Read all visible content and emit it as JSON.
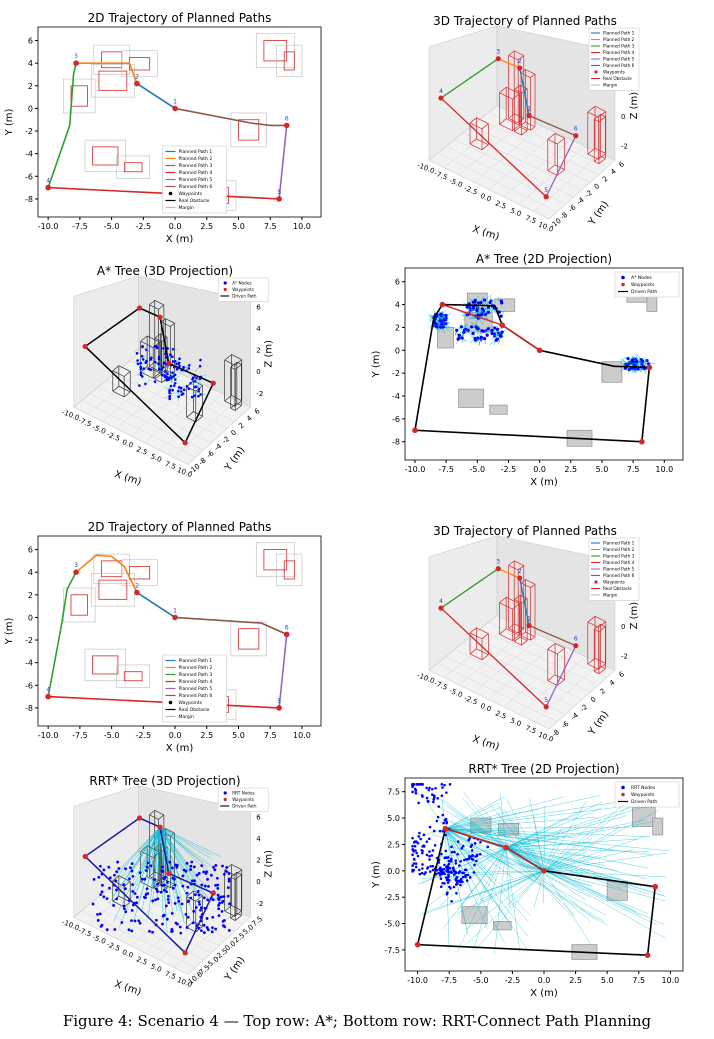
{
  "caption": "Figure 4: Scenario 4 — Top row: A*; Bottom row: RRT-Connect Path Planning",
  "colors": {
    "path1": "#1f77b4",
    "path2": "#ff7f0e",
    "path3": "#2ca02c",
    "path4": "#d62728",
    "path5": "#9467bd",
    "path6": "#8c564b",
    "waypoint": "#d62728",
    "obstacle": "#d62728",
    "margin": "#bbbbbb",
    "tree_node": "#0000ff",
    "tree_edge": "#00bcd4",
    "driven": "#000000"
  },
  "chart_data": [
    {
      "type": "line",
      "title": "2D Trajectory of Planned Paths",
      "xlabel": "X (m)",
      "ylabel": "Y (m)",
      "xlim": [
        -10.8,
        11.5
      ],
      "ylim": [
        -9.6,
        7.2
      ],
      "xticks": [
        "-10.0",
        "-7.5",
        "-5.0",
        "-2.5",
        "0.0",
        "2.5",
        "5.0",
        "7.5",
        "10.0"
      ],
      "yticks": [
        "-8",
        "-6",
        "-4",
        "-2",
        "0",
        "2",
        "4",
        "6"
      ],
      "waypoints": [
        {
          "label": "1",
          "x": 0,
          "y": 0
        },
        {
          "label": "2",
          "x": -3,
          "y": 2.2
        },
        {
          "label": "3",
          "x": -7.8,
          "y": 4
        },
        {
          "label": "4",
          "x": -10,
          "y": -7
        },
        {
          "label": "5",
          "x": 8.2,
          "y": -8
        },
        {
          "label": "6",
          "x": 8.8,
          "y": -1.5
        }
      ],
      "series": [
        {
          "name": "Planned Path 1",
          "color": "#1f77b4",
          "points": [
            [
              0,
              0
            ],
            [
              -3,
              2.2
            ]
          ]
        },
        {
          "name": "Planned Path 2",
          "color": "#ff7f0e",
          "points": [
            [
              -3,
              2.2
            ],
            [
              -3.2,
              2.8
            ],
            [
              -3.6,
              4
            ],
            [
              -7.8,
              4
            ]
          ]
        },
        {
          "name": "Planned Path 3",
          "color": "#2ca02c",
          "points": [
            [
              -7.8,
              4
            ],
            [
              -8,
              3
            ],
            [
              -8.3,
              -1.5
            ],
            [
              -10,
              -7
            ]
          ]
        },
        {
          "name": "Planned Path 4",
          "color": "#d62728",
          "points": [
            [
              -10,
              -7
            ],
            [
              8.2,
              -8
            ]
          ]
        },
        {
          "name": "Planned Path 5",
          "color": "#9467bd",
          "points": [
            [
              8.2,
              -8
            ],
            [
              8.8,
              -1.5
            ]
          ]
        },
        {
          "name": "Planned Path 6",
          "color": "#8c564b",
          "points": [
            [
              8.8,
              -1.5
            ],
            [
              7.5,
              -1.5
            ],
            [
              6,
              -1.3
            ],
            [
              0,
              0
            ]
          ]
        }
      ],
      "obstacles": [
        [
          -5.8,
          3.6,
          1.6,
          1.4
        ],
        [
          -6,
          1.6,
          2.2,
          1.7
        ],
        [
          -8.2,
          0.2,
          1.3,
          1.8
        ],
        [
          -3.6,
          3.4,
          1.6,
          1.1
        ],
        [
          7,
          4.2,
          1.8,
          1.8
        ],
        [
          8.6,
          3.4,
          0.8,
          1.6
        ],
        [
          -6.5,
          -5,
          2,
          1.6
        ],
        [
          -4,
          -5.6,
          1.4,
          0.8
        ],
        [
          5,
          -2.8,
          1.6,
          1.8
        ],
        [
          2.2,
          -8.4,
          2,
          1.4
        ]
      ],
      "legend": [
        "Planned Path 1",
        "Planned Path 2",
        "Planned Path 3",
        "Planned Path 4",
        "Planned Path 5",
        "Planned Path 6",
        "Waypoints",
        "Real Obstacle",
        "Margin"
      ]
    },
    {
      "type": "line",
      "title": "3D Trajectory of Planned Paths",
      "xlabel": "X (m)",
      "ylabel": "Y (m)",
      "zlabel": "Z (m)",
      "xticks": [
        "-10.0",
        "-7.5",
        "-5.0",
        "-2.5",
        "0.0",
        "2.5",
        "5.0",
        "7.5",
        "10.0"
      ],
      "yticks": [
        "-10",
        "-8",
        "-6",
        "-4",
        "-2",
        "0",
        "2",
        "4",
        "6"
      ],
      "zticks": [
        "-2",
        "0",
        "2",
        "4"
      ],
      "waypoints": [
        {
          "label": "1",
          "x": 0,
          "y": 0,
          "z": 1
        },
        {
          "label": "2",
          "x": -3,
          "y": 2.2,
          "z": 4
        },
        {
          "label": "3",
          "x": -7.8,
          "y": 4,
          "z": 3
        },
        {
          "label": "4",
          "x": -10,
          "y": -7,
          "z": 2
        },
        {
          "label": "5",
          "x": 8.2,
          "y": -8,
          "z": -2
        },
        {
          "label": "6",
          "x": 8.8,
          "y": -1.5,
          "z": 2
        }
      ],
      "legend": [
        "Planned Path 1",
        "Planned Path 2",
        "Planned Path 3",
        "Planned Path 4",
        "Planned Path 5",
        "Planned Path 6",
        "Waypoints",
        "Real Obstacle",
        "Margin"
      ]
    },
    {
      "type": "scatter",
      "title": "A* Tree (3D Projection)",
      "xlabel": "X (m)",
      "ylabel": "Y (m)",
      "zlabel": "Z (m)",
      "xticks": [
        "-10.0",
        "-7.5",
        "-5.0",
        "-2.5",
        "0.0",
        "2.5",
        "5.0",
        "7.5",
        "10.0"
      ],
      "yticks": [
        "-10",
        "-8",
        "-6",
        "-4",
        "-2",
        "0",
        "2",
        "4",
        "6"
      ],
      "zticks": [
        "-2",
        "0",
        "2",
        "4",
        "6"
      ],
      "legend": [
        "A* Nodes",
        "Waypoints",
        "Driven Path"
      ]
    },
    {
      "type": "scatter",
      "title": "A* Tree (2D Projection)",
      "xlabel": "X (m)",
      "ylabel": "Y (m)",
      "xlim": [
        -10.8,
        11.5
      ],
      "ylim": [
        -9.6,
        7.2
      ],
      "xticks": [
        "-10.0",
        "-7.5",
        "-5.0",
        "-2.5",
        "0.0",
        "2.5",
        "5.0",
        "7.5",
        "10.0"
      ],
      "yticks": [
        "-8",
        "-6",
        "-4",
        "-2",
        "0",
        "2",
        "4",
        "6"
      ],
      "driven": [
        [
          0,
          0
        ],
        [
          -3,
          2.2
        ],
        [
          -3.6,
          3.9
        ],
        [
          -7.8,
          4
        ],
        [
          -8.5,
          2.8
        ],
        [
          -10,
          -7
        ],
        [
          8.2,
          -8
        ],
        [
          8.8,
          -1.5
        ],
        [
          6,
          -1.4
        ],
        [
          0,
          0
        ]
      ],
      "obstacles": [
        [
          -5.8,
          3.6,
          1.6,
          1.4
        ],
        [
          -6,
          1.6,
          2.2,
          1.7
        ],
        [
          -8.2,
          0.2,
          1.3,
          1.8
        ],
        [
          -3.6,
          3.4,
          1.6,
          1.1
        ],
        [
          7,
          4.2,
          1.8,
          1.8
        ],
        [
          8.6,
          3.4,
          0.8,
          1.6
        ],
        [
          -6.5,
          -5,
          2,
          1.6
        ],
        [
          -4,
          -5.6,
          1.4,
          0.8
        ],
        [
          5,
          -2.8,
          1.6,
          1.8
        ],
        [
          2.2,
          -8.4,
          2,
          1.4
        ]
      ],
      "node_clusters": [
        [
          -4.5,
          3.6,
          3,
          1.6
        ],
        [
          -5,
          1.5,
          4,
          1.4
        ],
        [
          -8,
          2.6,
          1,
          1.2
        ],
        [
          7.8,
          -1.2,
          2,
          1
        ]
      ],
      "legend": [
        "A* Nodes",
        "Waypoints",
        "Driven Path"
      ]
    },
    {
      "type": "line",
      "title": "2D Trajectory of Planned Paths",
      "xlabel": "X (m)",
      "ylabel": "Y (m)",
      "xlim": [
        -10.8,
        11.5
      ],
      "ylim": [
        -9.6,
        7.2
      ],
      "xticks": [
        "-10.0",
        "-7.5",
        "-5.0",
        "-2.5",
        "0.0",
        "2.5",
        "5.0",
        "7.5",
        "10.0"
      ],
      "yticks": [
        "-8",
        "-6",
        "-4",
        "-2",
        "0",
        "2",
        "4",
        "6"
      ],
      "waypoints": [
        {
          "label": "1",
          "x": 0,
          "y": 0
        },
        {
          "label": "2",
          "x": -3,
          "y": 2.2
        },
        {
          "label": "3",
          "x": -7.8,
          "y": 4
        },
        {
          "label": "4",
          "x": -10,
          "y": -7
        },
        {
          "label": "5",
          "x": 8.2,
          "y": -8
        },
        {
          "label": "6",
          "x": 8.8,
          "y": -1.5
        }
      ],
      "series": [
        {
          "name": "Planned Path 1",
          "color": "#1f77b4",
          "points": [
            [
              0,
              0
            ],
            [
              -3,
              2.2
            ]
          ]
        },
        {
          "name": "Planned Path 2",
          "color": "#ff7f0e",
          "points": [
            [
              -3,
              2.2
            ],
            [
              -4,
              4.5
            ],
            [
              -5,
              5.4
            ],
            [
              -6.2,
              5.5
            ],
            [
              -7.8,
              4
            ]
          ]
        },
        {
          "name": "Planned Path 3",
          "color": "#2ca02c",
          "points": [
            [
              -7.8,
              4
            ],
            [
              -8.5,
              2.5
            ],
            [
              -9,
              -1
            ],
            [
              -10,
              -7
            ]
          ]
        },
        {
          "name": "Planned Path 4",
          "color": "#d62728",
          "points": [
            [
              -10,
              -7
            ],
            [
              8.2,
              -8
            ]
          ]
        },
        {
          "name": "Planned Path 5",
          "color": "#9467bd",
          "points": [
            [
              8.2,
              -8
            ],
            [
              8.8,
              -1.5
            ]
          ]
        },
        {
          "name": "Planned Path 6",
          "color": "#8c564b",
          "points": [
            [
              8.8,
              -1.5
            ],
            [
              6.8,
              -0.5
            ],
            [
              0,
              0
            ]
          ]
        }
      ],
      "obstacles": [
        [
          -5.8,
          3.6,
          1.6,
          1.4
        ],
        [
          -6,
          1.6,
          2.2,
          1.7
        ],
        [
          -8.2,
          0.2,
          1.3,
          1.8
        ],
        [
          -3.6,
          3.4,
          1.6,
          1.1
        ],
        [
          7,
          4.2,
          1.8,
          1.8
        ],
        [
          8.6,
          3.4,
          0.8,
          1.6
        ],
        [
          -6.5,
          -5,
          2,
          1.6
        ],
        [
          -4,
          -5.6,
          1.4,
          0.8
        ],
        [
          5,
          -2.8,
          1.6,
          1.8
        ],
        [
          2.2,
          -8.4,
          2,
          1.4
        ]
      ],
      "legend": [
        "Planned Path 1",
        "Planned Path 2",
        "Planned Path 3",
        "Planned Path 4",
        "Planned Path 5",
        "Planned Path 6",
        "Waypoints",
        "Real Obstacle",
        "Margin"
      ]
    },
    {
      "type": "line",
      "title": "3D Trajectory of Planned Paths",
      "xlabel": "X (m)",
      "ylabel": "Y (m)",
      "zlabel": "Z (m)",
      "xticks": [
        "-10.0",
        "-7.5",
        "-5.0",
        "-2.5",
        "0.0",
        "2.5",
        "5.0",
        "7.5",
        "10.0"
      ],
      "yticks": [
        "-8",
        "-6",
        "-4",
        "-2",
        "0",
        "2",
        "4",
        "6"
      ],
      "zticks": [
        "-2",
        "0",
        "2",
        "4"
      ],
      "waypoints": [
        {
          "label": "1",
          "x": 0,
          "y": 0,
          "z": 1
        },
        {
          "label": "2",
          "x": -3,
          "y": 2.2,
          "z": 4
        },
        {
          "label": "3",
          "x": -7.8,
          "y": 4,
          "z": 3
        },
        {
          "label": "4",
          "x": -10,
          "y": -7,
          "z": 2
        },
        {
          "label": "5",
          "x": 8.2,
          "y": -8,
          "z": -2
        },
        {
          "label": "6",
          "x": 8.8,
          "y": -1.5,
          "z": 2
        }
      ],
      "legend": [
        "Planned Path 1",
        "Planned Path 2",
        "Planned Path 3",
        "Planned Path 4",
        "Planned Path 5",
        "Planned Path 6",
        "Waypoints",
        "Real Obstacle",
        "Margin"
      ]
    },
    {
      "type": "scatter",
      "title": "RRT* Tree (3D Projection)",
      "xlabel": "X (m)",
      "ylabel": "Y (m)",
      "zlabel": "Z (m)",
      "xticks": [
        "-10.0",
        "-7.5",
        "-5.0",
        "-2.5",
        "0.0",
        "2.5",
        "5.0",
        "7.5",
        "10.0"
      ],
      "yticks": [
        "-10.0",
        "-7.5",
        "-5.0",
        "-2.5",
        "0.0",
        "2.5",
        "5.0",
        "7.5"
      ],
      "zticks": [
        "-2",
        "0",
        "2",
        "4",
        "6"
      ],
      "legend": [
        "RRT Nodes",
        "Waypoints",
        "Driven Path"
      ]
    },
    {
      "type": "scatter",
      "title": "RRT* Tree (2D Projection)",
      "xlabel": "X (m)",
      "ylabel": "Y (m)",
      "xlim": [
        -11,
        11
      ],
      "ylim": [
        -9.5,
        8.8
      ],
      "xticks": [
        "-10.0",
        "-7.5",
        "-5.0",
        "-2.5",
        "0.0",
        "2.5",
        "5.0",
        "7.5",
        "10.0"
      ],
      "yticks": [
        "-7.5",
        "-5.0",
        "-2.5",
        "0.0",
        "2.5",
        "5.0",
        "7.5"
      ],
      "driven": [
        [
          0,
          0
        ],
        [
          -3,
          2.2
        ],
        [
          -7.8,
          4
        ],
        [
          -10,
          -7
        ],
        [
          8.2,
          -8
        ],
        [
          8.8,
          -1.5
        ],
        [
          0,
          0
        ]
      ],
      "obstacles": [
        [
          -5.8,
          3.6,
          1.6,
          1.4
        ],
        [
          -3.6,
          3.4,
          1.6,
          1.1
        ],
        [
          7,
          4.2,
          1.8,
          1.8
        ],
        [
          8.6,
          3.4,
          0.8,
          1.6
        ],
        [
          -6.5,
          -5,
          2,
          1.6
        ],
        [
          -4,
          -5.6,
          1.4,
          0.8
        ],
        [
          5,
          -2.8,
          1.6,
          1.8
        ],
        [
          2.2,
          -8.4,
          2,
          1.4
        ]
      ],
      "legend": [
        "RRT Nodes",
        "Waypoints",
        "Driven Path"
      ]
    }
  ]
}
